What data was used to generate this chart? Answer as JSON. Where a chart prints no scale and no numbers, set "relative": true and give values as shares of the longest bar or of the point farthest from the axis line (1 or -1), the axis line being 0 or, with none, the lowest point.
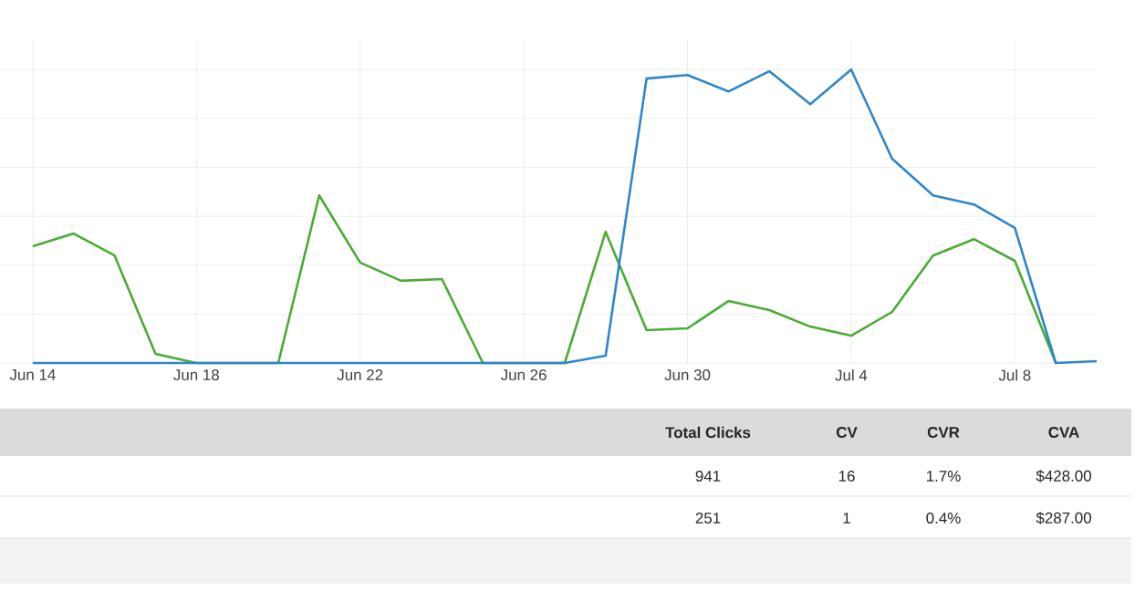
{
  "chart_data": {
    "type": "line",
    "relative": true,
    "grid": true,
    "categories": [
      "Jun 14",
      null,
      null,
      null,
      "Jun 18",
      null,
      null,
      null,
      "Jun 22",
      null,
      null,
      null,
      "Jun 26",
      null,
      null,
      null,
      "Jun 30",
      null,
      null,
      null,
      "Jul 4",
      null,
      null,
      null,
      "Jul 8",
      null,
      null
    ],
    "series": [
      {
        "color": "#4aab35",
        "values": [
          0.398,
          0.441,
          0.366,
          0.031,
          0,
          0,
          0,
          0.571,
          0.342,
          0.28,
          0.286,
          0,
          0,
          0,
          0.447,
          0.112,
          0.118,
          0.211,
          0.18,
          0.124,
          0.093,
          0.174,
          0.366,
          0.422,
          0.348,
          0,
          null
        ]
      },
      {
        "color": "#2f86c8",
        "values": [
          0,
          0,
          0,
          0,
          0,
          0,
          0,
          0,
          0,
          0,
          0,
          0,
          0,
          0,
          0.025,
          0.969,
          0.981,
          0.925,
          0.994,
          0.882,
          1,
          0.696,
          0.571,
          0.54,
          0.46,
          0,
          0.006
        ]
      }
    ],
    "annotations": [
      "Total Clicks",
      "CV",
      "CVR",
      "CVA",
      "941",
      "16",
      "1.7%",
      "$428.00",
      "251",
      "1",
      "0.4%",
      "$287.00"
    ]
  }
}
